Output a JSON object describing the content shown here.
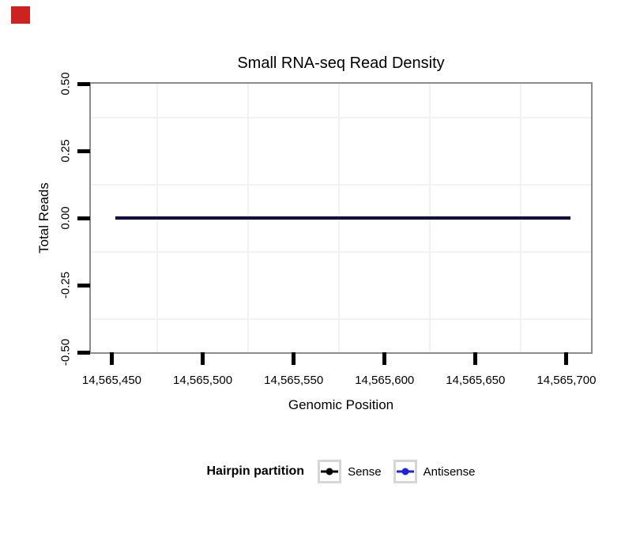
{
  "page": {
    "background": "#ffffff"
  },
  "overlay_marker": {
    "description": "red square marker in top-left corner",
    "color": "#cc2222"
  },
  "chart_data": {
    "type": "line",
    "title": "Small RNA-seq Read Density",
    "xlabel": "Genomic Position",
    "ylabel": "Total Reads",
    "xlim": [
      14565438.5,
      14565713.5
    ],
    "ylim": [
      -0.5,
      0.5
    ],
    "x_ticks": [
      {
        "value": 14565450,
        "label": "14,565,450"
      },
      {
        "value": 14565500,
        "label": "14,565,500"
      },
      {
        "value": 14565550,
        "label": "14,565,550"
      },
      {
        "value": 14565600,
        "label": "14,565,600"
      },
      {
        "value": 14565650,
        "label": "14,565,650"
      },
      {
        "value": 14565700,
        "label": "14,565,700"
      }
    ],
    "y_ticks": [
      {
        "value": 0.5,
        "label": "0.50"
      },
      {
        "value": 0.25,
        "label": "0.25"
      },
      {
        "value": 0,
        "label": "0.00"
      },
      {
        "value": -0.25,
        "label": "-0.25"
      },
      {
        "value": -0.5,
        "label": "-0.50"
      }
    ],
    "grid": {
      "major": "none",
      "minor_color": "#f2f2f2",
      "minor_position": "midpoints between ticks"
    },
    "panel_border_color": "#8c8c8c",
    "tick_color": "#000000",
    "legend": {
      "position": "bottom",
      "title": "Hairpin partition",
      "items": [
        {
          "name": "Sense",
          "color": "#000000"
        },
        {
          "name": "Antisense",
          "color": "#2222dd"
        }
      ]
    },
    "series": [
      {
        "name": "Sense",
        "color": "#000000",
        "x": [
          14565452,
          14565702
        ],
        "values": [
          0,
          0
        ]
      },
      {
        "name": "Antisense",
        "color": "#2222dd",
        "x": [
          14565452,
          14565702
        ],
        "values": [
          0,
          0
        ]
      }
    ]
  }
}
